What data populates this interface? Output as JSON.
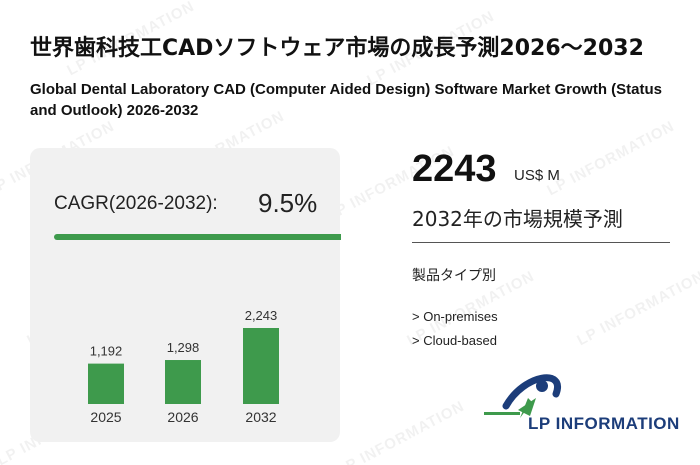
{
  "header": {
    "title_ja": "世界歯科技工CADソフトウェア市場の成長予測2026～2032",
    "title_en": "Global Dental Laboratory CAD (Computer Aided Design) Software Market Growth (Status and Outlook) 2026-2032"
  },
  "cagr": {
    "label": "CAGR(2026-2032):",
    "value": "9.5%"
  },
  "summary": {
    "value": "2243",
    "unit": "US$ M",
    "caption": "2032年の市場規模予測"
  },
  "segments": {
    "title": "製品タイプ別",
    "items": [
      "> On-premises",
      "> Cloud-based"
    ]
  },
  "logo": {
    "text": "LP INFORMATION",
    "watermark": "LP INFORMATION"
  },
  "colors": {
    "bar": "#3e9a4c",
    "card": "#f1f1f1",
    "logo_blue": "#1c3d7a",
    "logo_green": "#3e9a4c"
  },
  "chart_data": {
    "type": "bar",
    "categories": [
      "2025",
      "2026",
      "2032"
    ],
    "values": [
      1192,
      1298,
      2243
    ],
    "data_labels": [
      "1,192",
      "1,298",
      "2,243"
    ],
    "title": "",
    "xlabel": "",
    "ylabel": "",
    "ylim": [
      0,
      2243
    ],
    "grid": false,
    "legend": "none"
  }
}
